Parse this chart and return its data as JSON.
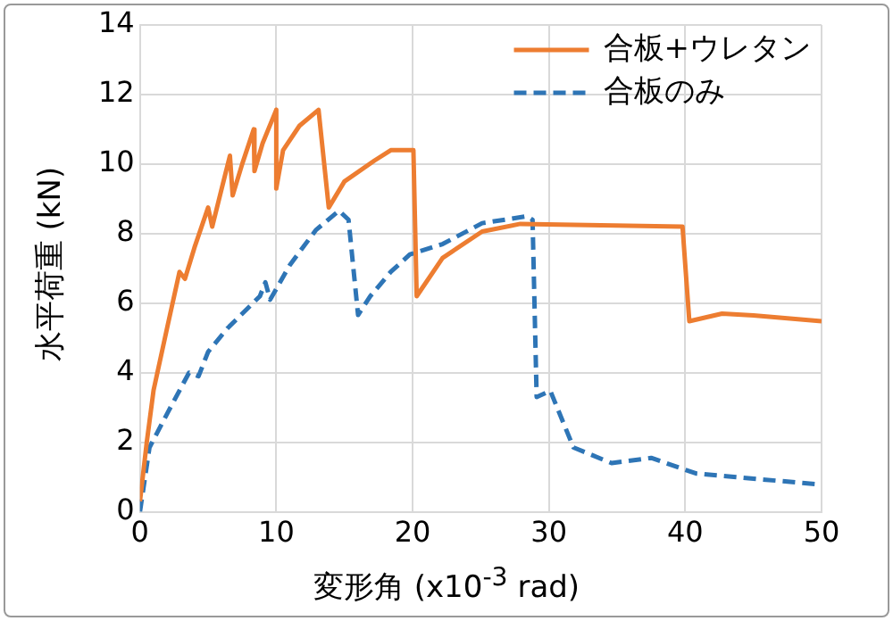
{
  "chart_data": {
    "type": "line",
    "xlabel": "変形角 (x10$^{-3}$ rad)",
    "ylabel": "水平荷重 (kN)",
    "xlim": [
      0,
      50
    ],
    "xticks": [
      0,
      10,
      20,
      30,
      40,
      50
    ],
    "ylim": [
      0,
      14
    ],
    "yticks": [
      0,
      2,
      4,
      6,
      8,
      10,
      12,
      14
    ],
    "grid": true,
    "legend": "top right",
    "marker": "none",
    "series": [
      {
        "name": "合板+ウレタン",
        "color": "#ed7d31",
        "line_style": "solid",
        "x": [
          0,
          0.5,
          1,
          2,
          2.9,
          3.3,
          4,
          5,
          5.3,
          6,
          6.6,
          6.8,
          7.5,
          8.35,
          8.4,
          9,
          10,
          10,
          10.5,
          11.7,
          13.1,
          13.85,
          15,
          17.2,
          18.4,
          20.06,
          20.3,
          22.2,
          25.1,
          27.9,
          39.8,
          40.3,
          42.7,
          45,
          50
        ],
        "values": [
          0.3,
          2,
          3.5,
          5.3,
          6.9,
          6.7,
          7.6,
          8.75,
          8.2,
          9.3,
          10.24,
          9.1,
          10,
          11,
          9.8,
          10.6,
          11.56,
          9.3,
          10.4,
          11.1,
          11.56,
          8.75,
          9.5,
          10.1,
          10.4,
          10.4,
          6.2,
          7.3,
          8.06,
          8.28,
          8.2,
          5.48,
          5.7,
          5.65,
          5.48
        ]
      },
      {
        "name": "合板のみ",
        "color": "#2e75b6",
        "line_style": "dashed",
        "x": [
          0,
          0.7,
          2.1,
          3.6,
          4.3,
          5,
          6.4,
          8.8,
          9.2,
          9.55,
          11,
          12.9,
          14.6,
          15.3,
          16,
          16.9,
          18.4,
          19.8,
          22.2,
          25.1,
          28.4,
          28.8,
          29.1,
          30.1,
          31.8,
          34.6,
          37.5,
          40.8,
          50
        ],
        "values": [
          0,
          1.85,
          2.9,
          4,
          3.9,
          4.6,
          5.27,
          6.2,
          6.6,
          6.1,
          7.1,
          8.1,
          8.66,
          8.4,
          5.66,
          6.2,
          6.9,
          7.4,
          7.7,
          8.3,
          8.5,
          8.4,
          3.3,
          3.48,
          1.85,
          1.4,
          1.55,
          1.1,
          0.78
        ]
      }
    ]
  }
}
